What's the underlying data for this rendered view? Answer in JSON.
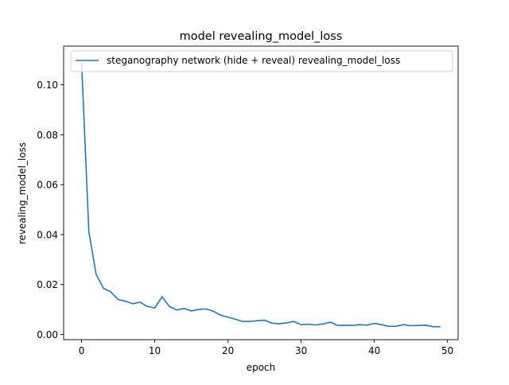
{
  "chart_data": {
    "type": "line",
    "title": "model revealing_model_loss",
    "xlabel": "epoch",
    "ylabel": "revealing_model_loss",
    "xlim": [
      -2.45,
      51.45
    ],
    "ylim": [
      -0.0021,
      0.1155
    ],
    "xticks": [
      0,
      10,
      20,
      30,
      40,
      50
    ],
    "yticks": [
      0.0,
      0.02,
      0.04,
      0.06,
      0.08,
      0.1
    ],
    "xtick_labels": [
      "0",
      "10",
      "20",
      "30",
      "40",
      "50"
    ],
    "ytick_labels": [
      "0.00",
      "0.02",
      "0.04",
      "0.06",
      "0.08",
      "0.10"
    ],
    "grid": false,
    "legend_position": "upper-right",
    "series": [
      {
        "name": "steganography network (hide + reveal) revealing_model_loss",
        "color": "#1f77b4",
        "x": [
          0,
          1,
          2,
          3,
          4,
          5,
          6,
          7,
          8,
          9,
          10,
          11,
          12,
          13,
          14,
          15,
          16,
          17,
          18,
          19,
          20,
          21,
          22,
          23,
          24,
          25,
          26,
          27,
          28,
          29,
          30,
          31,
          32,
          33,
          34,
          35,
          36,
          37,
          38,
          39,
          40,
          41,
          42,
          43,
          44,
          45,
          46,
          47,
          48,
          49
        ],
        "values": [
          0.109,
          0.041,
          0.024,
          0.0185,
          0.017,
          0.014,
          0.0133,
          0.0123,
          0.0129,
          0.0112,
          0.0106,
          0.0151,
          0.0112,
          0.0098,
          0.0104,
          0.0094,
          0.01,
          0.0102,
          0.0093,
          0.0077,
          0.0069,
          0.0061,
          0.0052,
          0.0052,
          0.0055,
          0.0057,
          0.0045,
          0.0043,
          0.0046,
          0.0052,
          0.0039,
          0.0041,
          0.0038,
          0.0042,
          0.0049,
          0.0036,
          0.0037,
          0.0036,
          0.0039,
          0.0037,
          0.0044,
          0.0039,
          0.0032,
          0.0033,
          0.0039,
          0.0035,
          0.0036,
          0.0037,
          0.0031,
          0.0031
        ]
      }
    ]
  }
}
